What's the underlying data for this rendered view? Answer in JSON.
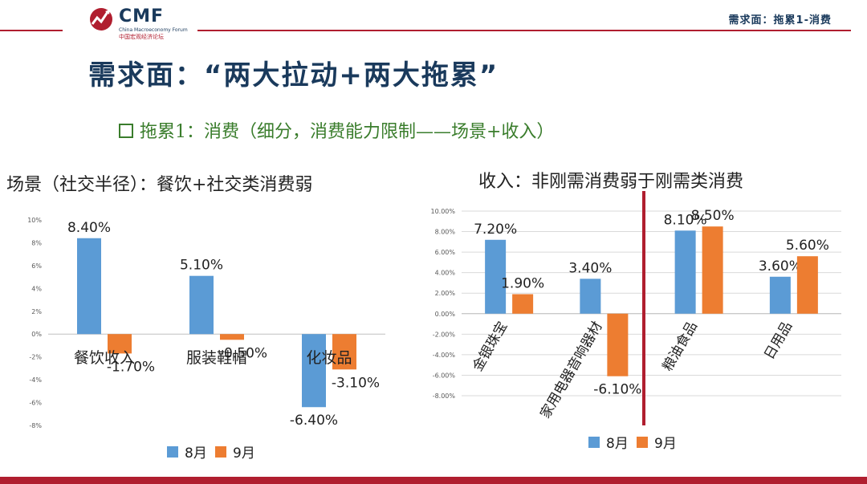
{
  "header": {
    "logo_text": "CMF",
    "logo_sub": "China Macroeconomy Forum",
    "logo_cn": "中国宏观经济论坛",
    "right_title": "需求面：拖累1-消费"
  },
  "slide": {
    "title": "需求面：“两大拉动+两大拖累”",
    "subtitle": "拖累1：消费（细分，消费能力限制——场景+收入）",
    "section_left": "场景（社交半径）：餐饮+社交类消费弱",
    "section_right": "收入：非刚需消费弱于刚需类消费"
  },
  "colors": {
    "aug": "#5b9bd5",
    "sep": "#ed7d31",
    "accent": "#b01e2f",
    "title": "#1a3a5c",
    "subtitle": "#3a7d2c"
  },
  "chart_data": [
    {
      "type": "bar",
      "categories": [
        "餐饮收入",
        "服装鞋帽",
        "化妆品"
      ],
      "series": [
        {
          "name": "8月",
          "values": [
            8.4,
            5.1,
            -6.4
          ],
          "labels": [
            "8.40%",
            "5.10%",
            "-6.40%"
          ]
        },
        {
          "name": "9月",
          "values": [
            -1.7,
            -0.5,
            -3.1
          ],
          "labels": [
            "-1.70%",
            "-0.50%",
            "-3.10%"
          ]
        }
      ],
      "ylim": [
        -8,
        10
      ],
      "yticks": [
        "10%",
        "8%",
        "6%",
        "4%",
        "2%",
        "0%",
        "-2%",
        "-4%",
        "-6%",
        "-8%"
      ],
      "legend": "bottom",
      "grid": false
    },
    {
      "type": "bar",
      "categories": [
        "金银珠宝",
        "家用电器音响器材",
        "粮油食品",
        "日用品"
      ],
      "series": [
        {
          "name": "8月",
          "values": [
            7.2,
            3.4,
            8.1,
            3.6
          ],
          "labels": [
            "7.20%",
            "3.40%",
            "8.10%",
            "3.60%"
          ]
        },
        {
          "name": "9月",
          "values": [
            1.9,
            -6.1,
            8.5,
            5.6
          ],
          "labels": [
            "1.90%",
            "-6.10%",
            "8.50%",
            "5.60%"
          ]
        }
      ],
      "ylim": [
        -8,
        10
      ],
      "yticks": [
        "10.00%",
        "8.00%",
        "6.00%",
        "4.00%",
        "2.00%",
        "0.00%",
        "-2.00%",
        "-4.00%",
        "-6.00%",
        "-8.00%"
      ],
      "legend": "bottom",
      "grid": true
    }
  ]
}
